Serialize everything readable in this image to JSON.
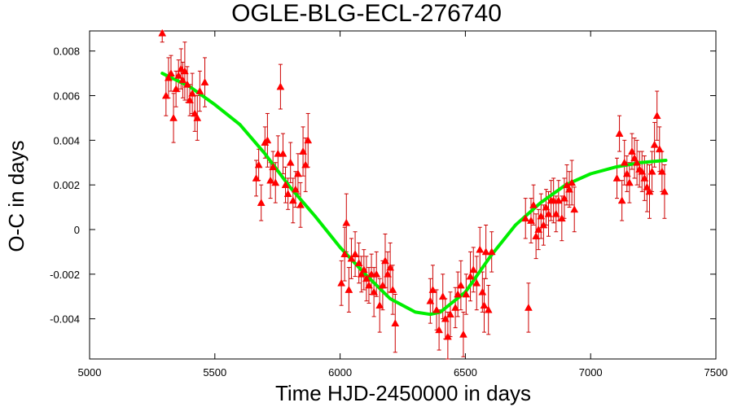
{
  "chart_data": {
    "type": "scatter",
    "title": "OGLE-BLG-ECL-276740",
    "xlabel": "Time HJD-2450000 in days",
    "ylabel": "O-C in days",
    "xlim": [
      5000,
      7500
    ],
    "ylim": [
      -0.0058,
      0.0089
    ],
    "xticks": [
      5000,
      5500,
      6000,
      6500,
      7000,
      7500
    ],
    "xtick_labels": [
      "5000",
      "5500",
      "6000",
      "6500",
      "7000",
      "7500"
    ],
    "yticks": [
      -0.004,
      -0.002,
      0,
      0.002,
      0.004,
      0.006,
      0.008
    ],
    "ytick_labels": [
      "-0.004",
      "-0.002",
      "0",
      "0.002",
      "0.004",
      "0.006",
      "0.008"
    ],
    "grid": false,
    "colors": {
      "points": "#ff0000",
      "errorbars": "#cc0000",
      "fit": "#00ee00"
    },
    "series": [
      {
        "type": "scatter_errorbars",
        "points": [
          [
            5290,
            0.0088,
            0.0004
          ],
          [
            5305,
            0.006,
            0.0009
          ],
          [
            5315,
            0.0068,
            0.0009
          ],
          [
            5325,
            0.007,
            0.0008
          ],
          [
            5335,
            0.005,
            0.0011
          ],
          [
            5345,
            0.0063,
            0.0008
          ],
          [
            5355,
            0.0069,
            0.0007
          ],
          [
            5365,
            0.0072,
            0.0009
          ],
          [
            5372,
            0.0067,
            0.0008
          ],
          [
            5380,
            0.0071,
            0.0013
          ],
          [
            5390,
            0.0065,
            0.0008
          ],
          [
            5400,
            0.0058,
            0.0007
          ],
          [
            5410,
            0.0061,
            0.0009
          ],
          [
            5420,
            0.0052,
            0.0008
          ],
          [
            5430,
            0.005,
            0.001
          ],
          [
            5440,
            0.0062,
            0.0009
          ],
          [
            5460,
            0.0066,
            0.0011
          ],
          [
            5665,
            0.0023,
            0.0008
          ],
          [
            5675,
            0.0029,
            0.0007
          ],
          [
            5685,
            0.0012,
            0.0008
          ],
          [
            5700,
            0.0039,
            0.0007
          ],
          [
            5710,
            0.004,
            0.0012
          ],
          [
            5722,
            0.0022,
            0.0008
          ],
          [
            5732,
            0.0028,
            0.0007
          ],
          [
            5742,
            0.0021,
            0.0009
          ],
          [
            5752,
            0.0034,
            0.0008
          ],
          [
            5762,
            0.0064,
            0.001
          ],
          [
            5772,
            0.0034,
            0.0009
          ],
          [
            5782,
            0.002,
            0.0008
          ],
          [
            5792,
            0.0016,
            0.0007
          ],
          [
            5802,
            0.003,
            0.0009
          ],
          [
            5812,
            0.0013,
            0.001
          ],
          [
            5822,
            0.0018,
            0.0008
          ],
          [
            5832,
            0.0025,
            0.0009
          ],
          [
            5842,
            0.0011,
            0.001
          ],
          [
            5852,
            0.0035,
            0.0011
          ],
          [
            5862,
            0.0029,
            0.0012
          ],
          [
            5872,
            0.004,
            0.0012
          ],
          [
            6005,
            -0.0024,
            0.001
          ],
          [
            6018,
            -0.0011,
            0.0012
          ],
          [
            6025,
            0.0003,
            0.0013
          ],
          [
            6035,
            -0.0027,
            0.001
          ],
          [
            6045,
            -0.0013,
            0.0009
          ],
          [
            6060,
            -0.0011,
            0.001
          ],
          [
            6075,
            -0.0015,
            0.0009
          ],
          [
            6085,
            -0.002,
            0.0008
          ],
          [
            6095,
            -0.0018,
            0.0009
          ],
          [
            6105,
            -0.0022,
            0.001
          ],
          [
            6115,
            -0.0025,
            0.0008
          ],
          [
            6125,
            -0.002,
            0.0009
          ],
          [
            6135,
            -0.0028,
            0.0011
          ],
          [
            6145,
            -0.002,
            0.001
          ],
          [
            6158,
            -0.0034,
            0.0012
          ],
          [
            6170,
            -0.0025,
            0.0011
          ],
          [
            6180,
            -0.0014,
            0.0012
          ],
          [
            6190,
            -0.002,
            0.001
          ],
          [
            6200,
            -0.0017,
            0.0011
          ],
          [
            6210,
            -0.0027,
            0.0011
          ],
          [
            6220,
            -0.0042,
            0.0013
          ],
          [
            6360,
            -0.0032,
            0.001
          ],
          [
            6370,
            -0.0027,
            0.0011
          ],
          [
            6385,
            -0.0036,
            0.0009
          ],
          [
            6395,
            -0.0045,
            0.0009
          ],
          [
            6410,
            -0.003,
            0.001
          ],
          [
            6420,
            -0.004,
            0.0009
          ],
          [
            6430,
            -0.0048,
            0.0011
          ],
          [
            6440,
            -0.0038,
            0.001
          ],
          [
            6460,
            -0.0035,
            0.0009
          ],
          [
            6470,
            -0.0029,
            0.001
          ],
          [
            6482,
            -0.0025,
            0.0011
          ],
          [
            6492,
            -0.0047,
            0.001
          ],
          [
            6503,
            -0.0029,
            0.0009
          ],
          [
            6520,
            -0.0021,
            0.0011
          ],
          [
            6532,
            -0.0018,
            0.001
          ],
          [
            6545,
            -0.0024,
            0.0012
          ],
          [
            6558,
            -0.0009,
            0.001
          ],
          [
            6568,
            -0.0028,
            0.0009
          ],
          [
            6575,
            -0.0034,
            0.0012
          ],
          [
            6582,
            -0.001,
            0.0012
          ],
          [
            6592,
            -0.0036,
            0.0011
          ],
          [
            6605,
            -0.001,
            0.0009
          ],
          [
            6740,
            0.0005,
            0.0009
          ],
          [
            6752,
            -0.0035,
            0.0011
          ],
          [
            6762,
            0.0004,
            0.001
          ],
          [
            6772,
            0.0011,
            0.0009
          ],
          [
            6782,
            -0.0003,
            0.001
          ],
          [
            6792,
            0.0,
            0.0009
          ],
          [
            6802,
            0.0006,
            0.001
          ],
          [
            6812,
            0.0002,
            0.0009
          ],
          [
            6822,
            0.001,
            0.0008
          ],
          [
            6832,
            0.0007,
            0.001
          ],
          [
            6842,
            0.0013,
            0.0009
          ],
          [
            6852,
            0.0013,
            0.001
          ],
          [
            6862,
            0.0007,
            0.0008
          ],
          [
            6872,
            0.0013,
            0.0009
          ],
          [
            6885,
            0.0005,
            0.001
          ],
          [
            6895,
            0.0014,
            0.0009
          ],
          [
            6905,
            0.002,
            0.0009
          ],
          [
            6915,
            0.0018,
            0.0008
          ],
          [
            6925,
            0.0021,
            0.001
          ],
          [
            6935,
            0.0009,
            0.001
          ],
          [
            7105,
            0.0023,
            0.0009
          ],
          [
            7115,
            0.0043,
            0.0008
          ],
          [
            7125,
            0.0013,
            0.0009
          ],
          [
            7135,
            0.003,
            0.001
          ],
          [
            7145,
            0.0025,
            0.0008
          ],
          [
            7155,
            0.0021,
            0.0009
          ],
          [
            7165,
            0.0035,
            0.0008
          ],
          [
            7175,
            0.0032,
            0.0009
          ],
          [
            7185,
            0.003,
            0.001
          ],
          [
            7195,
            0.0027,
            0.0008
          ],
          [
            7205,
            0.0026,
            0.0009
          ],
          [
            7215,
            0.0023,
            0.001
          ],
          [
            7225,
            0.0019,
            0.0011
          ],
          [
            7235,
            0.0017,
            0.0012
          ],
          [
            7245,
            0.0026,
            0.0009
          ],
          [
            7255,
            0.0038,
            0.001
          ],
          [
            7265,
            0.0051,
            0.0011
          ],
          [
            7275,
            0.0036,
            0.001
          ],
          [
            7285,
            0.0026,
            0.0009
          ],
          [
            7295,
            0.0017,
            0.0012
          ]
        ]
      },
      {
        "type": "fit_line",
        "x": [
          5290,
          5400,
          5500,
          5600,
          5700,
          5800,
          5900,
          6000,
          6100,
          6200,
          6300,
          6360,
          6400,
          6500,
          6600,
          6700,
          6800,
          6900,
          7000,
          7100,
          7200,
          7300
        ],
        "y": [
          0.007,
          0.0064,
          0.0056,
          0.0047,
          0.0034,
          0.0019,
          0.0006,
          -0.0008,
          -0.002,
          -0.0031,
          -0.0037,
          -0.0038,
          -0.0037,
          -0.0028,
          -0.0012,
          0.0002,
          0.0012,
          0.002,
          0.0025,
          0.0028,
          0.003,
          0.0031
        ]
      }
    ]
  }
}
